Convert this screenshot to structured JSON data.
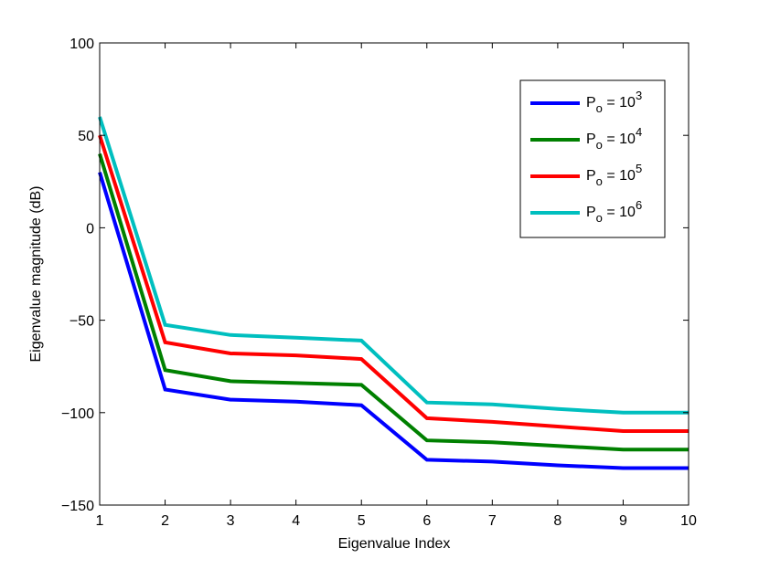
{
  "chart_data": {
    "type": "line",
    "title": "",
    "xlabel": "Eigenvalue Index",
    "ylabel": "Eigenvalue magnitude (dB)",
    "xlim": [
      1,
      10
    ],
    "ylim": [
      -150,
      100
    ],
    "xticks": [
      1,
      2,
      3,
      4,
      5,
      6,
      7,
      8,
      9,
      10
    ],
    "yticks": [
      100,
      50,
      0,
      -50,
      -100,
      -150
    ],
    "ytick_labels": [
      "100",
      "50",
      "0",
      "−50",
      "−100",
      "−150"
    ],
    "grid": false,
    "legend_position": "upper right",
    "x": [
      1,
      2,
      3,
      4,
      5,
      6,
      7,
      8,
      9,
      10
    ],
    "series": [
      {
        "name": "P_o = 10^3",
        "label_base": "P",
        "label_sub": "o",
        "label_eq": " = 10",
        "label_sup": "3",
        "color": "#0000ff",
        "values": [
          30,
          -87.5,
          -93,
          -94,
          -96,
          -125.5,
          -126.5,
          -128.5,
          -130,
          -130
        ]
      },
      {
        "name": "P_o = 10^4",
        "label_base": "P",
        "label_sub": "o",
        "label_eq": " = 10",
        "label_sup": "4",
        "color": "#008000",
        "values": [
          40,
          -77,
          -83,
          -84,
          -85,
          -115,
          -116,
          -118,
          -120,
          -120
        ]
      },
      {
        "name": "P_o = 10^5",
        "label_base": "P",
        "label_sub": "o",
        "label_eq": " = 10",
        "label_sup": "5",
        "color": "#ff0000",
        "values": [
          50,
          -62,
          -68,
          -69,
          -71,
          -103,
          -105,
          -107.5,
          -110,
          -110
        ]
      },
      {
        "name": "P_o = 10^6",
        "label_base": "P",
        "label_sub": "o",
        "label_eq": " = 10",
        "label_sup": "6",
        "color": "#00bfbf",
        "values": [
          60,
          -52.5,
          -58,
          -59.5,
          -61,
          -94.5,
          -95.5,
          -98,
          -100,
          -100
        ]
      }
    ]
  }
}
